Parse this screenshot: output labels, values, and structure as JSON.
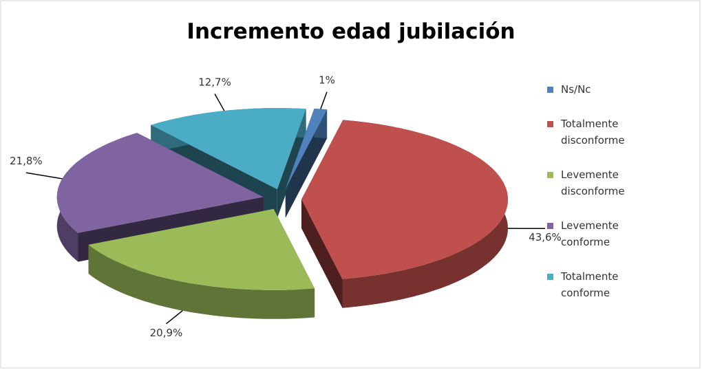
{
  "chart_data": {
    "type": "pie3d",
    "title": "Incremento edad jubilación",
    "categories": [
      "Ns/Nc",
      "Totalmente disconforme",
      "Levemente disconforme",
      "Levemente conforme",
      "Totalmente conforme"
    ],
    "values": [
      1,
      43.6,
      20.9,
      21.8,
      12.7
    ],
    "value_labels": [
      "1%",
      "43,6%",
      "20,9%",
      "21,8%",
      "12,7%"
    ],
    "colors": [
      "#4f81bd",
      "#c0504d",
      "#9bbb59",
      "#8064a2",
      "#4bacc6"
    ],
    "legend": "right"
  }
}
